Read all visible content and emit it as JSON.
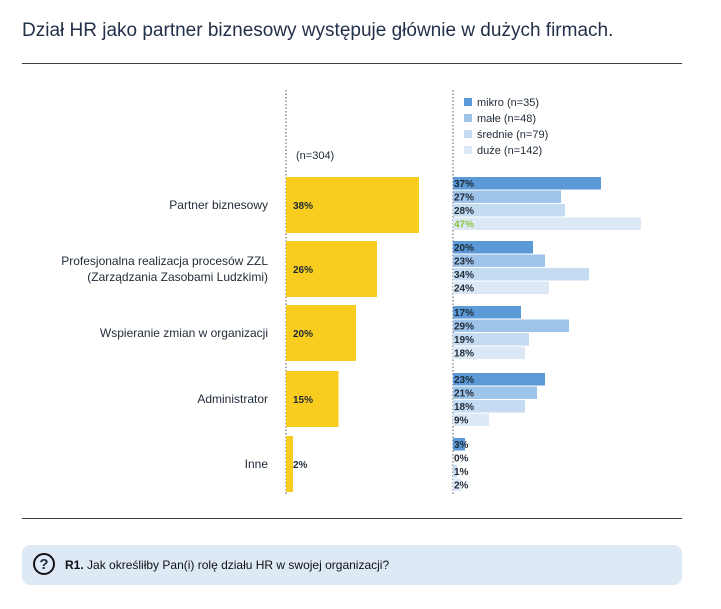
{
  "header": {
    "title": "Dział HR jako partner biznesowy występuje głównie w dużych firmach."
  },
  "footer": {
    "question_number": "R1.",
    "question_text": "Jak określiłby Pan(i) rolę działu HR w swojej organizacji?",
    "icon": "question-mark-icon"
  },
  "chart_data": [
    {
      "type": "bar",
      "orientation": "horizontal",
      "note": "(n=304)",
      "categories": [
        [
          "Partner biznesowy"
        ],
        [
          "Profesjonalna realizacja procesów ZZL",
          "(Zarządzania Zasobami Ludzkimi)"
        ],
        [
          "Wspieranie zmian w organizacji"
        ],
        [
          "Administrator"
        ],
        [
          "Inne"
        ]
      ],
      "values": [
        38,
        26,
        20,
        15,
        2
      ],
      "value_labels": [
        "38%",
        "26%",
        "20%",
        "15%",
        "2%"
      ],
      "color": "#f8cd1f"
    },
    {
      "type": "bar",
      "orientation": "horizontal",
      "legend_position": "top-left",
      "series": [
        {
          "name": "mikro (n=35)",
          "color": "#5b9ad6",
          "values": [
            37,
            20,
            17,
            23,
            3
          ],
          "labels": [
            "37%",
            "20%",
            "17%",
            "23%",
            "3%"
          ]
        },
        {
          "name": "małe (n=48)",
          "color": "#9fc4e9",
          "values": [
            27,
            23,
            29,
            21,
            0
          ],
          "labels": [
            "27%",
            "23%",
            "29%",
            "21%",
            "0%"
          ]
        },
        {
          "name": "średnie (n=79)",
          "color": "#c5dbf1",
          "values": [
            28,
            34,
            19,
            18,
            1
          ],
          "labels": [
            "28%",
            "34%",
            "19%",
            "18%",
            "1%"
          ]
        },
        {
          "name": "duże (n=142)",
          "color": "#dce8f6",
          "values": [
            47,
            24,
            18,
            9,
            2
          ],
          "labels": [
            "47%",
            "24%",
            "18%",
            "9%",
            "2%"
          ]
        }
      ],
      "highlight": {
        "series": 3,
        "category": 0,
        "color": "#8cc63f"
      }
    }
  ]
}
